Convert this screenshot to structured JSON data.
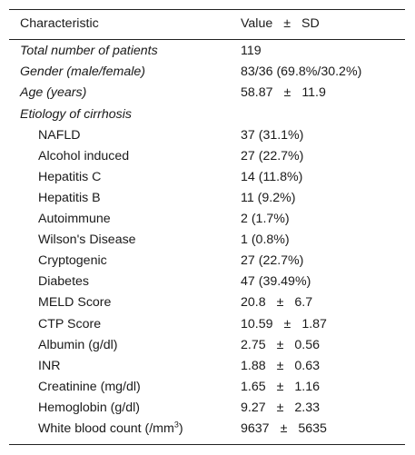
{
  "header": {
    "characteristic": "Characteristic",
    "value": "Value",
    "pm": "±",
    "sd": "SD"
  },
  "rows": [
    {
      "label": "Total number of patients",
      "value": "119"
    },
    {
      "label": "Gender (male/female)",
      "value": "83/36 (69.8%/30.2%)"
    },
    {
      "label": "Age (years)",
      "v1": "58.87",
      "pm": "±",
      "v2": "11.9"
    },
    {
      "label": "Etiology of cirrhosis"
    },
    {
      "label": "NAFLD",
      "value": "37 (31.1%)"
    },
    {
      "label": "Alcohol induced",
      "value": "27 (22.7%)"
    },
    {
      "label": "Hepatitis C",
      "value": "14 (11.8%)"
    },
    {
      "label": "Hepatitis B",
      "value": "11 (9.2%)"
    },
    {
      "label": "Autoimmune",
      "value": "2 (1.7%)"
    },
    {
      "label": "Wilson's Disease",
      "value": "1 (0.8%)"
    },
    {
      "label": "Cryptogenic",
      "value": "27 (22.7%)"
    },
    {
      "label": "Diabetes",
      "value": "47 (39.49%)"
    },
    {
      "label": "MELD Score",
      "v1": "20.8",
      "pm": "±",
      "v2": "6.7"
    },
    {
      "label": "CTP Score",
      "v1": "10.59",
      "pm": "±",
      "v2": "1.87"
    },
    {
      "label": "Albumin (g/dl)",
      "v1": "2.75",
      "pm": "±",
      "v2": "0.56"
    },
    {
      "label": "INR",
      "v1": "1.88",
      "pm": "±",
      "v2": "0.63"
    },
    {
      "label": "Creatinine (mg/dl)",
      "v1": "1.65",
      "pm": "±",
      "v2": "1.16"
    },
    {
      "label": "Hemoglobin (g/dl)",
      "v1": "9.27",
      "pm": "±",
      "v2": "2.33"
    },
    {
      "label": "White blood count (/mm",
      "label_sup": "3",
      "label_end": ")",
      "v1": "9637",
      "pm": "±",
      "v2": "5635"
    }
  ]
}
